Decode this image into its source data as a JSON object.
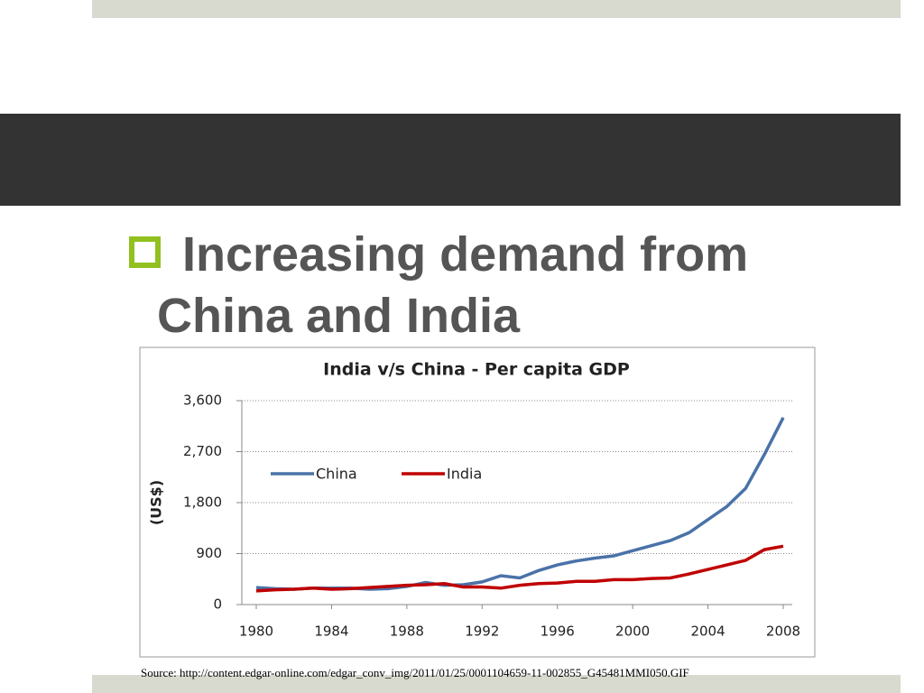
{
  "slide": {
    "bullet": "Increasing demand from China and India",
    "source": "Source: http://content.edgar-online.com/edgar_conv_img/2011/01/25/0001104659-11-002855_G45481MMI050.GIF"
  },
  "chart_data": {
    "type": "line",
    "title": "India v/s China - Per capita GDP",
    "y_label": "(US$)",
    "x": [
      1980,
      1981,
      1982,
      1983,
      1984,
      1985,
      1986,
      1987,
      1988,
      1989,
      1990,
      1991,
      1992,
      1993,
      1994,
      1995,
      1996,
      1997,
      1998,
      1999,
      2000,
      2001,
      2002,
      2003,
      2004,
      2005,
      2006,
      2007,
      2008
    ],
    "series": [
      {
        "name": "China",
        "color": "#4a72a8",
        "values": [
          300,
          280,
          270,
          290,
          290,
          290,
          270,
          280,
          320,
          390,
          340,
          350,
          400,
          510,
          470,
          600,
          700,
          770,
          820,
          860,
          950,
          1040,
          1130,
          1270,
          1500,
          1730,
          2050,
          2650,
          3300
        ]
      },
      {
        "name": "India",
        "color": "#c00000",
        "values": [
          240,
          260,
          270,
          290,
          270,
          280,
          300,
          320,
          340,
          350,
          370,
          310,
          310,
          290,
          340,
          370,
          380,
          410,
          410,
          440,
          440,
          460,
          470,
          540,
          620,
          700,
          780,
          970,
          1030
        ]
      }
    ],
    "xlim": [
      1980,
      2008
    ],
    "xticks": [
      1980,
      1984,
      1988,
      1992,
      1996,
      2000,
      2004,
      2008
    ],
    "ylim": [
      0,
      3600
    ],
    "yticks": [
      0,
      900,
      {
        "value": 1800,
        "label": "1,800"
      },
      {
        "value": 2700,
        "label": "2,700"
      },
      {
        "value": 3600,
        "label": "3,600"
      }
    ],
    "grid": true,
    "legend": "upper-left"
  }
}
